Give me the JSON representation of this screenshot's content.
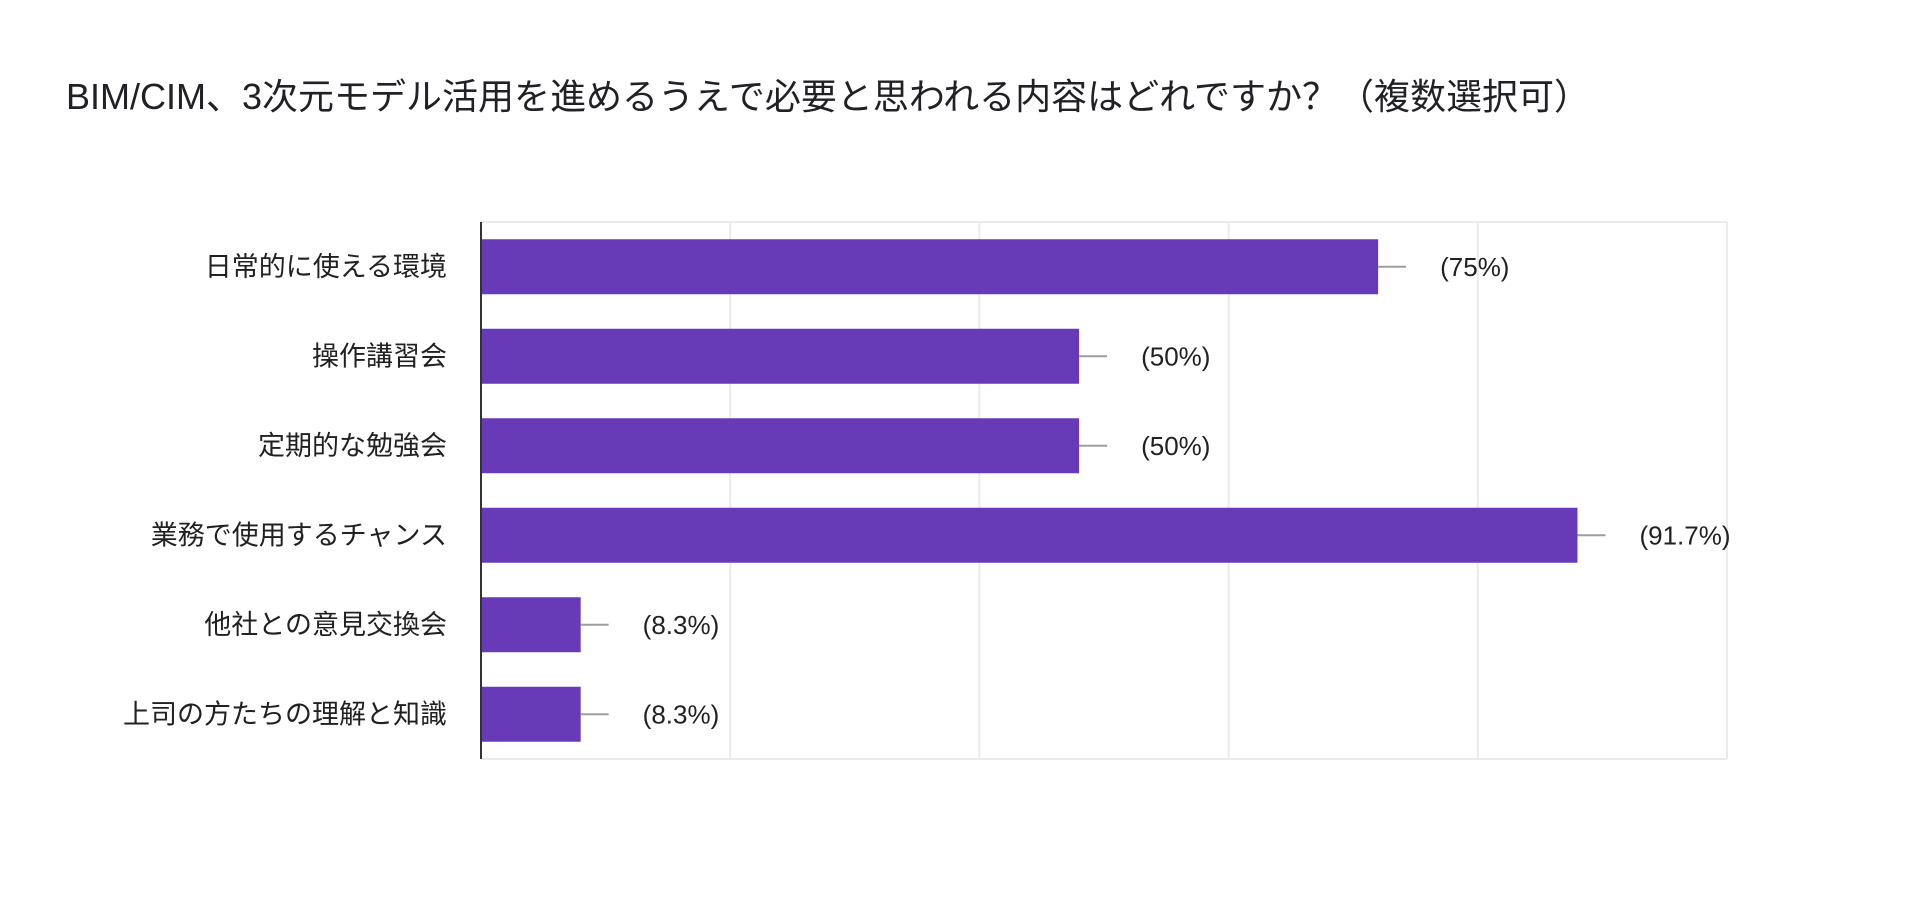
{
  "chart_data": {
    "type": "bar",
    "orientation": "horizontal",
    "title": "BIM/CIM、3次元モデル活用を進めるうえで必要と思われる内容はどれですか？（複数選択可）",
    "categories": [
      "日常的に使える環境",
      "操作講習会",
      "定期的な勉強会",
      "業務で使用するチャンス",
      "他社との意見交換会",
      "上司の方たちの理解と知識"
    ],
    "values": [
      9,
      6,
      6,
      11,
      1,
      1
    ],
    "data_labels": [
      "(75%)",
      "(50%)",
      "(50%)",
      "(91.7%)",
      "(8.3%)",
      "(8.3%)"
    ],
    "xlim": [
      0,
      12.5
    ],
    "x_gridlines": [
      2.5,
      5,
      7.5,
      10,
      12.5
    ],
    "x_tick_labels_shown": false,
    "grid": true,
    "bar_color": "#673ab7"
  }
}
